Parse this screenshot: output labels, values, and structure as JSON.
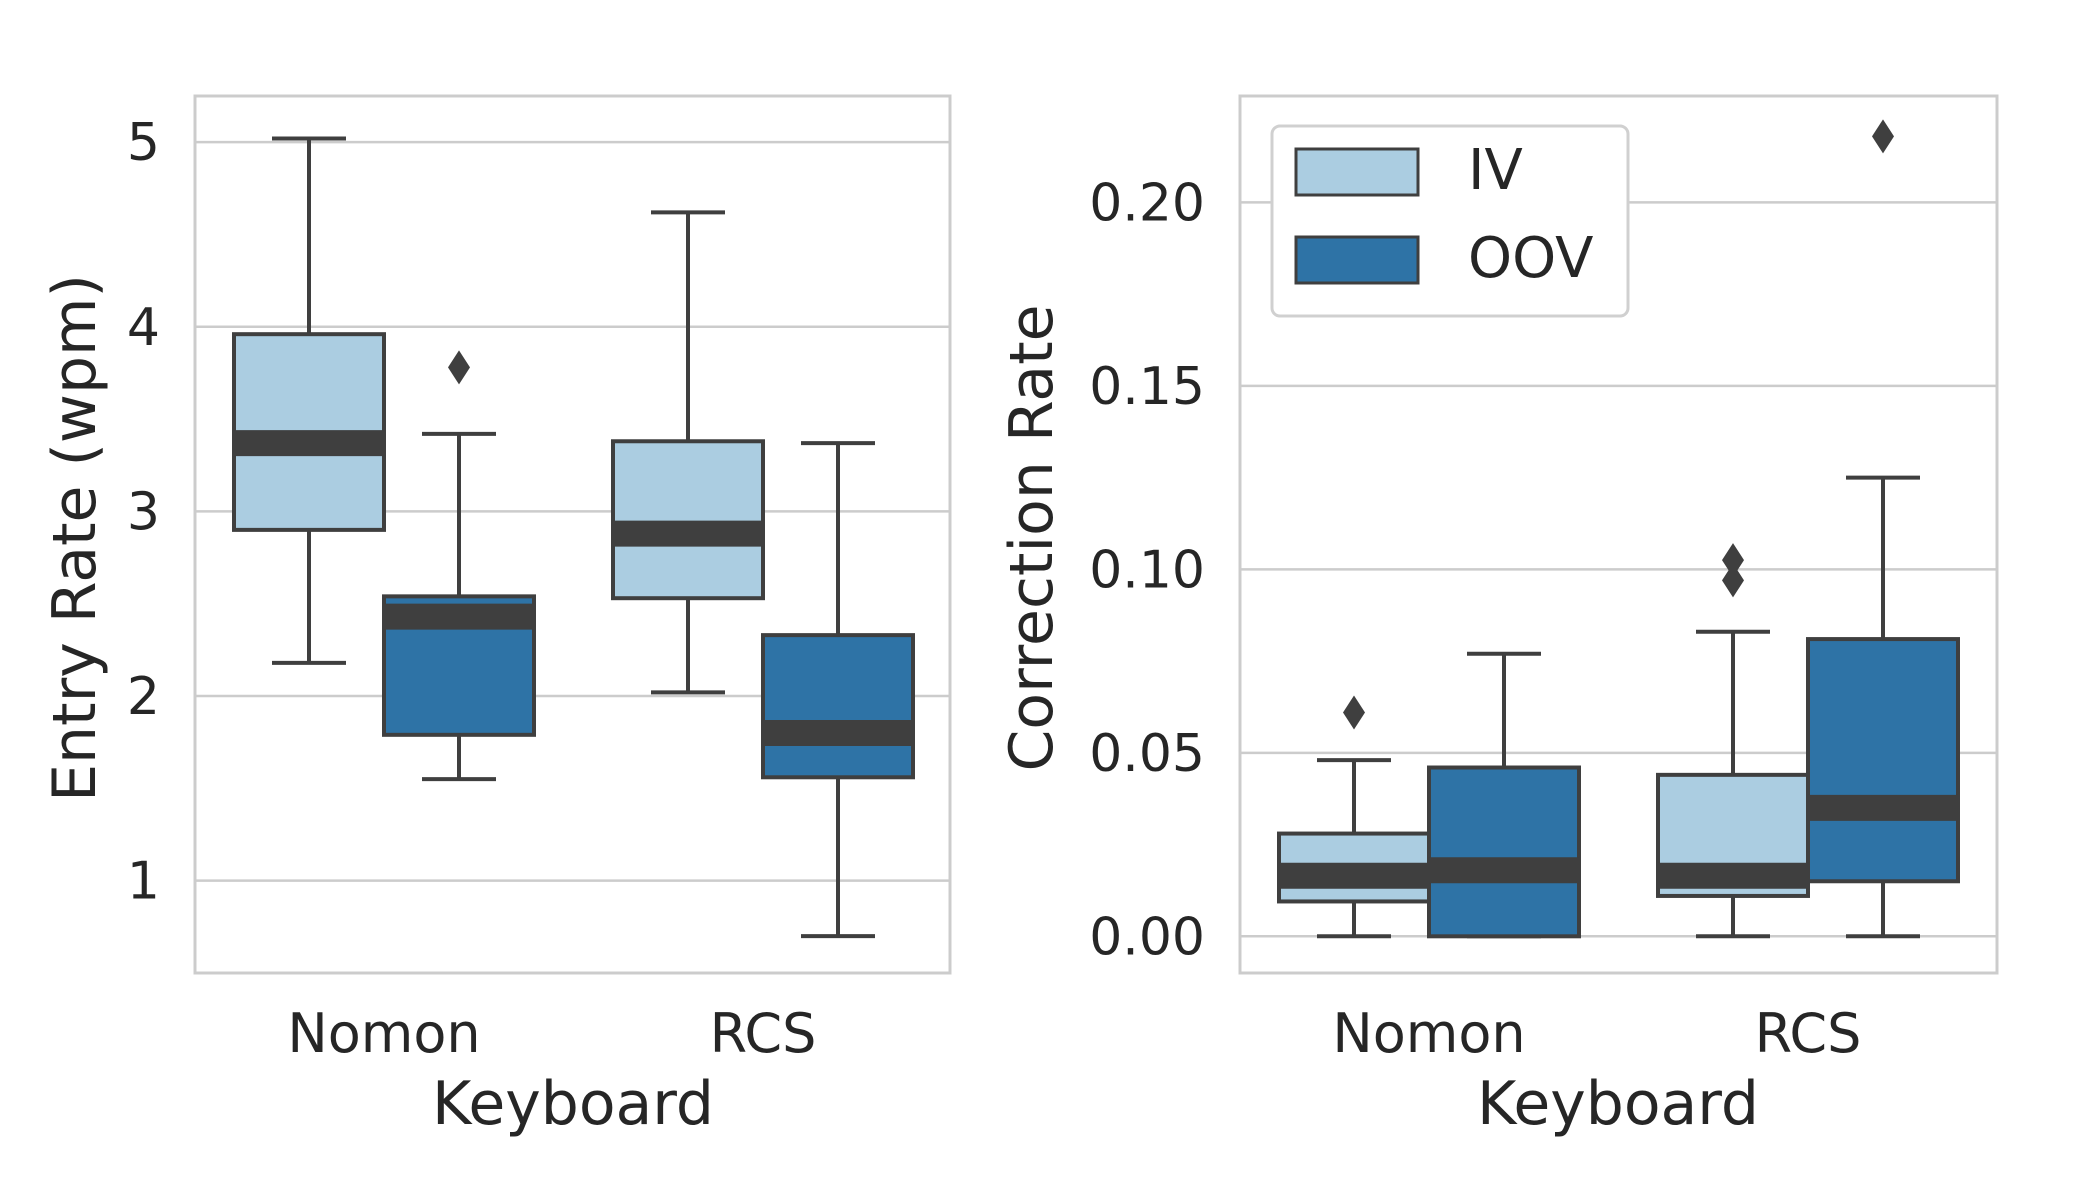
{
  "chart_data": [
    {
      "type": "box",
      "xlabel": "Keyboard",
      "ylabel": "Entry Rate (wpm)",
      "ylim": [
        0.5,
        5.25
      ],
      "yticks": [
        1,
        2,
        3,
        4,
        5
      ],
      "grid": "horizontal",
      "categories": [
        "Nomon",
        "RCS"
      ],
      "series": [
        {
          "name": "IV",
          "color": "#abcde1",
          "boxes": [
            {
              "whisker_low": 2.18,
              "q1": 2.9,
              "median": 3.37,
              "q3": 3.96,
              "whisker_high": 5.02,
              "outliers": []
            },
            {
              "whisker_low": 2.02,
              "q1": 2.53,
              "median": 2.88,
              "q3": 3.38,
              "whisker_high": 4.62,
              "outliers": []
            }
          ]
        },
        {
          "name": "OOV",
          "color": "#2e73a6",
          "boxes": [
            {
              "whisker_low": 1.55,
              "q1": 1.79,
              "median": 2.43,
              "q3": 2.54,
              "whisker_high": 3.42,
              "outliers": [
                3.78
              ]
            },
            {
              "whisker_low": 0.7,
              "q1": 1.56,
              "median": 1.8,
              "q3": 2.33,
              "whisker_high": 3.37,
              "outliers": []
            }
          ]
        }
      ]
    },
    {
      "type": "box",
      "xlabel": "Keyboard",
      "ylabel": "Correction Rate",
      "ylim": [
        -0.01,
        0.229
      ],
      "yticks": [
        "0.00",
        "0.05",
        "0.10",
        "0.15",
        "0.20"
      ],
      "grid": "horizontal",
      "legend": {
        "placement": "top-left",
        "entries": [
          "IV",
          "OOV"
        ]
      },
      "categories": [
        "Nomon",
        "RCS"
      ],
      "series": [
        {
          "name": "IV",
          "color": "#abcde1",
          "boxes": [
            {
              "whisker_low": 0.0,
              "q1": 0.0095,
              "median": 0.0165,
              "q3": 0.028,
              "whisker_high": 0.048,
              "outliers": [
                0.061
              ]
            },
            {
              "whisker_low": 0.0,
              "q1": 0.011,
              "median": 0.0165,
              "q3": 0.044,
              "whisker_high": 0.083,
              "outliers": [
                0.097,
                0.1025
              ]
            }
          ]
        },
        {
          "name": "OOV",
          "color": "#2e73a6",
          "boxes": [
            {
              "whisker_low": 0.0,
              "q1": 0.0,
              "median": 0.018,
              "q3": 0.046,
              "whisker_high": 0.077,
              "outliers": []
            },
            {
              "whisker_low": 0.0,
              "q1": 0.015,
              "median": 0.035,
              "q3": 0.081,
              "whisker_high": 0.125,
              "outliers": [
                0.218
              ]
            }
          ]
        }
      ]
    }
  ]
}
